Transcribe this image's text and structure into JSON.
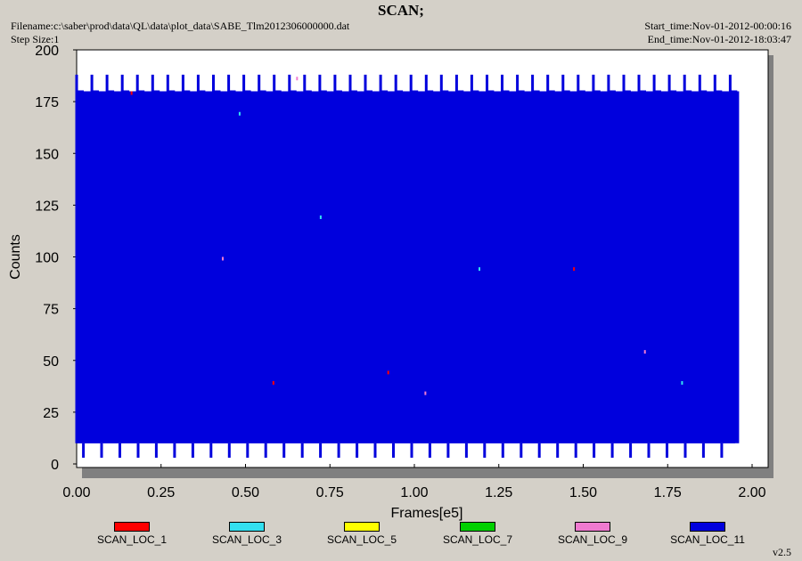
{
  "header": {
    "filename": "Filename:c:\\saber\\prod\\data\\QL\\data\\plot_data\\SABE_Tlm2012306000000.dat",
    "step_size": "Step Size:1",
    "start_time": "Start_time:Nov-01-2012-00:00:16",
    "end_time": "End_time:Nov-01-2012-18:03:47"
  },
  "version": "v2.5",
  "chart_data": {
    "type": "line",
    "title": "SCAN;",
    "xlabel": "Frames[e5]",
    "ylabel": "Counts",
    "xlim": [
      0,
      2.0
    ],
    "ylim": [
      0,
      200
    ],
    "xticks": [
      "0.00",
      "0.25",
      "0.50",
      "0.75",
      "1.00",
      "1.25",
      "1.50",
      "1.75",
      "2.00"
    ],
    "yticks": [
      "0",
      "25",
      "50",
      "75",
      "100",
      "125",
      "150",
      "175",
      "200"
    ],
    "grid": false,
    "legend_position": "bottom",
    "data_x_range": [
      0,
      1.95
    ],
    "scan_pattern": {
      "high_level": 180,
      "peak_level": 188,
      "peak_spacing": 0.0435,
      "baseline_band": [
        10,
        31
      ],
      "low_dips": 3,
      "repeat_spacing": 0.015
    },
    "series": [
      {
        "name": "SCAN_LOC_1",
        "color": "#ff0000"
      },
      {
        "name": "SCAN_LOC_3",
        "color": "#33e0f0"
      },
      {
        "name": "SCAN_LOC_5",
        "color": "#ffff00"
      },
      {
        "name": "SCAN_LOC_7",
        "color": "#00d000"
      },
      {
        "name": "SCAN_LOC_9",
        "color": "#f07ad0"
      },
      {
        "name": "SCAN_LOC_11",
        "color": "#0000dd"
      }
    ]
  }
}
